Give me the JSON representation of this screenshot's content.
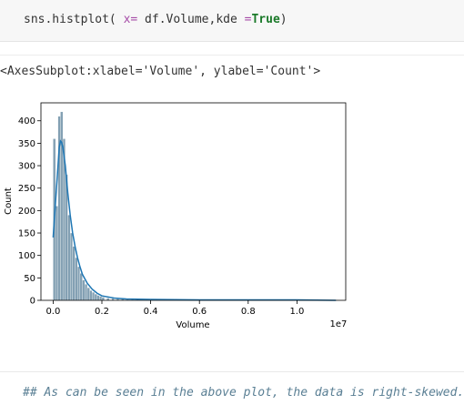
{
  "code_cell": {
    "fn": "sns.histplot",
    "open": "( ",
    "kw1": "x",
    "eq1": "=",
    "arg1": " df.Volume,",
    "kw2": "kde",
    "eq2": " =",
    "val2": "True",
    "close": ")"
  },
  "output": {
    "repr": "<AxesSubplot:xlabel='Volume', ylabel='Count'>"
  },
  "markdown": {
    "text": "## As can be seen in the above plot, the data is right-skewed."
  },
  "colors": {
    "bar_fill": "#6d8fa6",
    "kde_line": "#1f77b4",
    "keyword": "#a64da8",
    "true_literal": "#1b7a2a",
    "comment": "#5a7f94"
  },
  "chart_data": {
    "type": "bar",
    "xlabel": "Volume",
    "ylabel": "Count",
    "offset_label": "1e7",
    "xlim": [
      -0.05,
      1.2
    ],
    "ylim": [
      0,
      440
    ],
    "xticks": [
      "0.0",
      "0.2",
      "0.4",
      "0.6",
      "0.8",
      "1.0"
    ],
    "yticks": [
      "0",
      "50",
      "100",
      "150",
      "200",
      "250",
      "300",
      "350",
      "400"
    ],
    "grid": false,
    "bin_width": 0.01,
    "bins": [
      {
        "x": 0.0,
        "y": 360
      },
      {
        "x": 0.01,
        "y": 210
      },
      {
        "x": 0.02,
        "y": 410
      },
      {
        "x": 0.03,
        "y": 420
      },
      {
        "x": 0.04,
        "y": 360
      },
      {
        "x": 0.05,
        "y": 280
      },
      {
        "x": 0.06,
        "y": 190
      },
      {
        "x": 0.07,
        "y": 150
      },
      {
        "x": 0.08,
        "y": 120
      },
      {
        "x": 0.09,
        "y": 95
      },
      {
        "x": 0.1,
        "y": 75
      },
      {
        "x": 0.11,
        "y": 60
      },
      {
        "x": 0.12,
        "y": 45
      },
      {
        "x": 0.13,
        "y": 36
      },
      {
        "x": 0.14,
        "y": 28
      },
      {
        "x": 0.15,
        "y": 22
      },
      {
        "x": 0.16,
        "y": 18
      },
      {
        "x": 0.17,
        "y": 14
      },
      {
        "x": 0.18,
        "y": 11
      },
      {
        "x": 0.19,
        "y": 9
      },
      {
        "x": 0.2,
        "y": 7
      },
      {
        "x": 0.22,
        "y": 5
      },
      {
        "x": 0.24,
        "y": 4
      },
      {
        "x": 0.26,
        "y": 3
      },
      {
        "x": 0.28,
        "y": 3
      },
      {
        "x": 0.3,
        "y": 2
      },
      {
        "x": 0.32,
        "y": 2
      },
      {
        "x": 0.34,
        "y": 2
      },
      {
        "x": 0.38,
        "y": 1
      },
      {
        "x": 0.42,
        "y": 1
      },
      {
        "x": 0.5,
        "y": 1
      },
      {
        "x": 0.6,
        "y": 1
      },
      {
        "x": 0.8,
        "y": 1
      },
      {
        "x": 1.16,
        "y": 1
      }
    ],
    "kde": [
      [
        0.0,
        140
      ],
      [
        0.01,
        220
      ],
      [
        0.02,
        300
      ],
      [
        0.025,
        340
      ],
      [
        0.03,
        355
      ],
      [
        0.035,
        352
      ],
      [
        0.04,
        340
      ],
      [
        0.05,
        300
      ],
      [
        0.06,
        240
      ],
      [
        0.07,
        190
      ],
      [
        0.08,
        150
      ],
      [
        0.09,
        120
      ],
      [
        0.1,
        95
      ],
      [
        0.11,
        75
      ],
      [
        0.12,
        58
      ],
      [
        0.14,
        38
      ],
      [
        0.16,
        25
      ],
      [
        0.18,
        16
      ],
      [
        0.2,
        10
      ],
      [
        0.25,
        5
      ],
      [
        0.3,
        3
      ],
      [
        0.4,
        2
      ],
      [
        0.6,
        1
      ],
      [
        0.8,
        1
      ],
      [
        1.0,
        1
      ],
      [
        1.16,
        0
      ]
    ]
  }
}
